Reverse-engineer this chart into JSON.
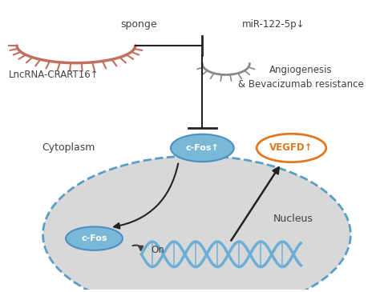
{
  "background_color": "#ffffff",
  "fig_width": 4.74,
  "fig_height": 3.65,
  "dpi": 100,
  "lncrna_label": "LncRNA-CRART16↑",
  "mirna_label": "miR-122-5p↓",
  "sponge_label": "sponge",
  "cfos_cytoplasm_label": "c-Fos↑",
  "cfos_nucleus_label": "c-Fos",
  "vegfd_label": "VEGFD↑",
  "angiogenesis_label": "Angiogenesis\n& Bevacizumab resistance",
  "cytoplasm_label": "Cytoplasm",
  "nucleus_label": "Nucleus",
  "on_label": "On",
  "lncrna_color": "#c07060",
  "mirna_color": "#888888",
  "cfos_fill": "#7ab8d8",
  "cfos_edge": "#4a90c4",
  "nucleus_fill": "#d8d8d8",
  "nucleus_edge": "#5a9ec8",
  "vegfd_fill": "#ffffff",
  "vegfd_edge": "#e07820",
  "vegfd_text": "#e07820",
  "dna_color": "#6baed6",
  "arrow_color": "#222222",
  "inhibit_color": "#222222",
  "text_color": "#404040"
}
